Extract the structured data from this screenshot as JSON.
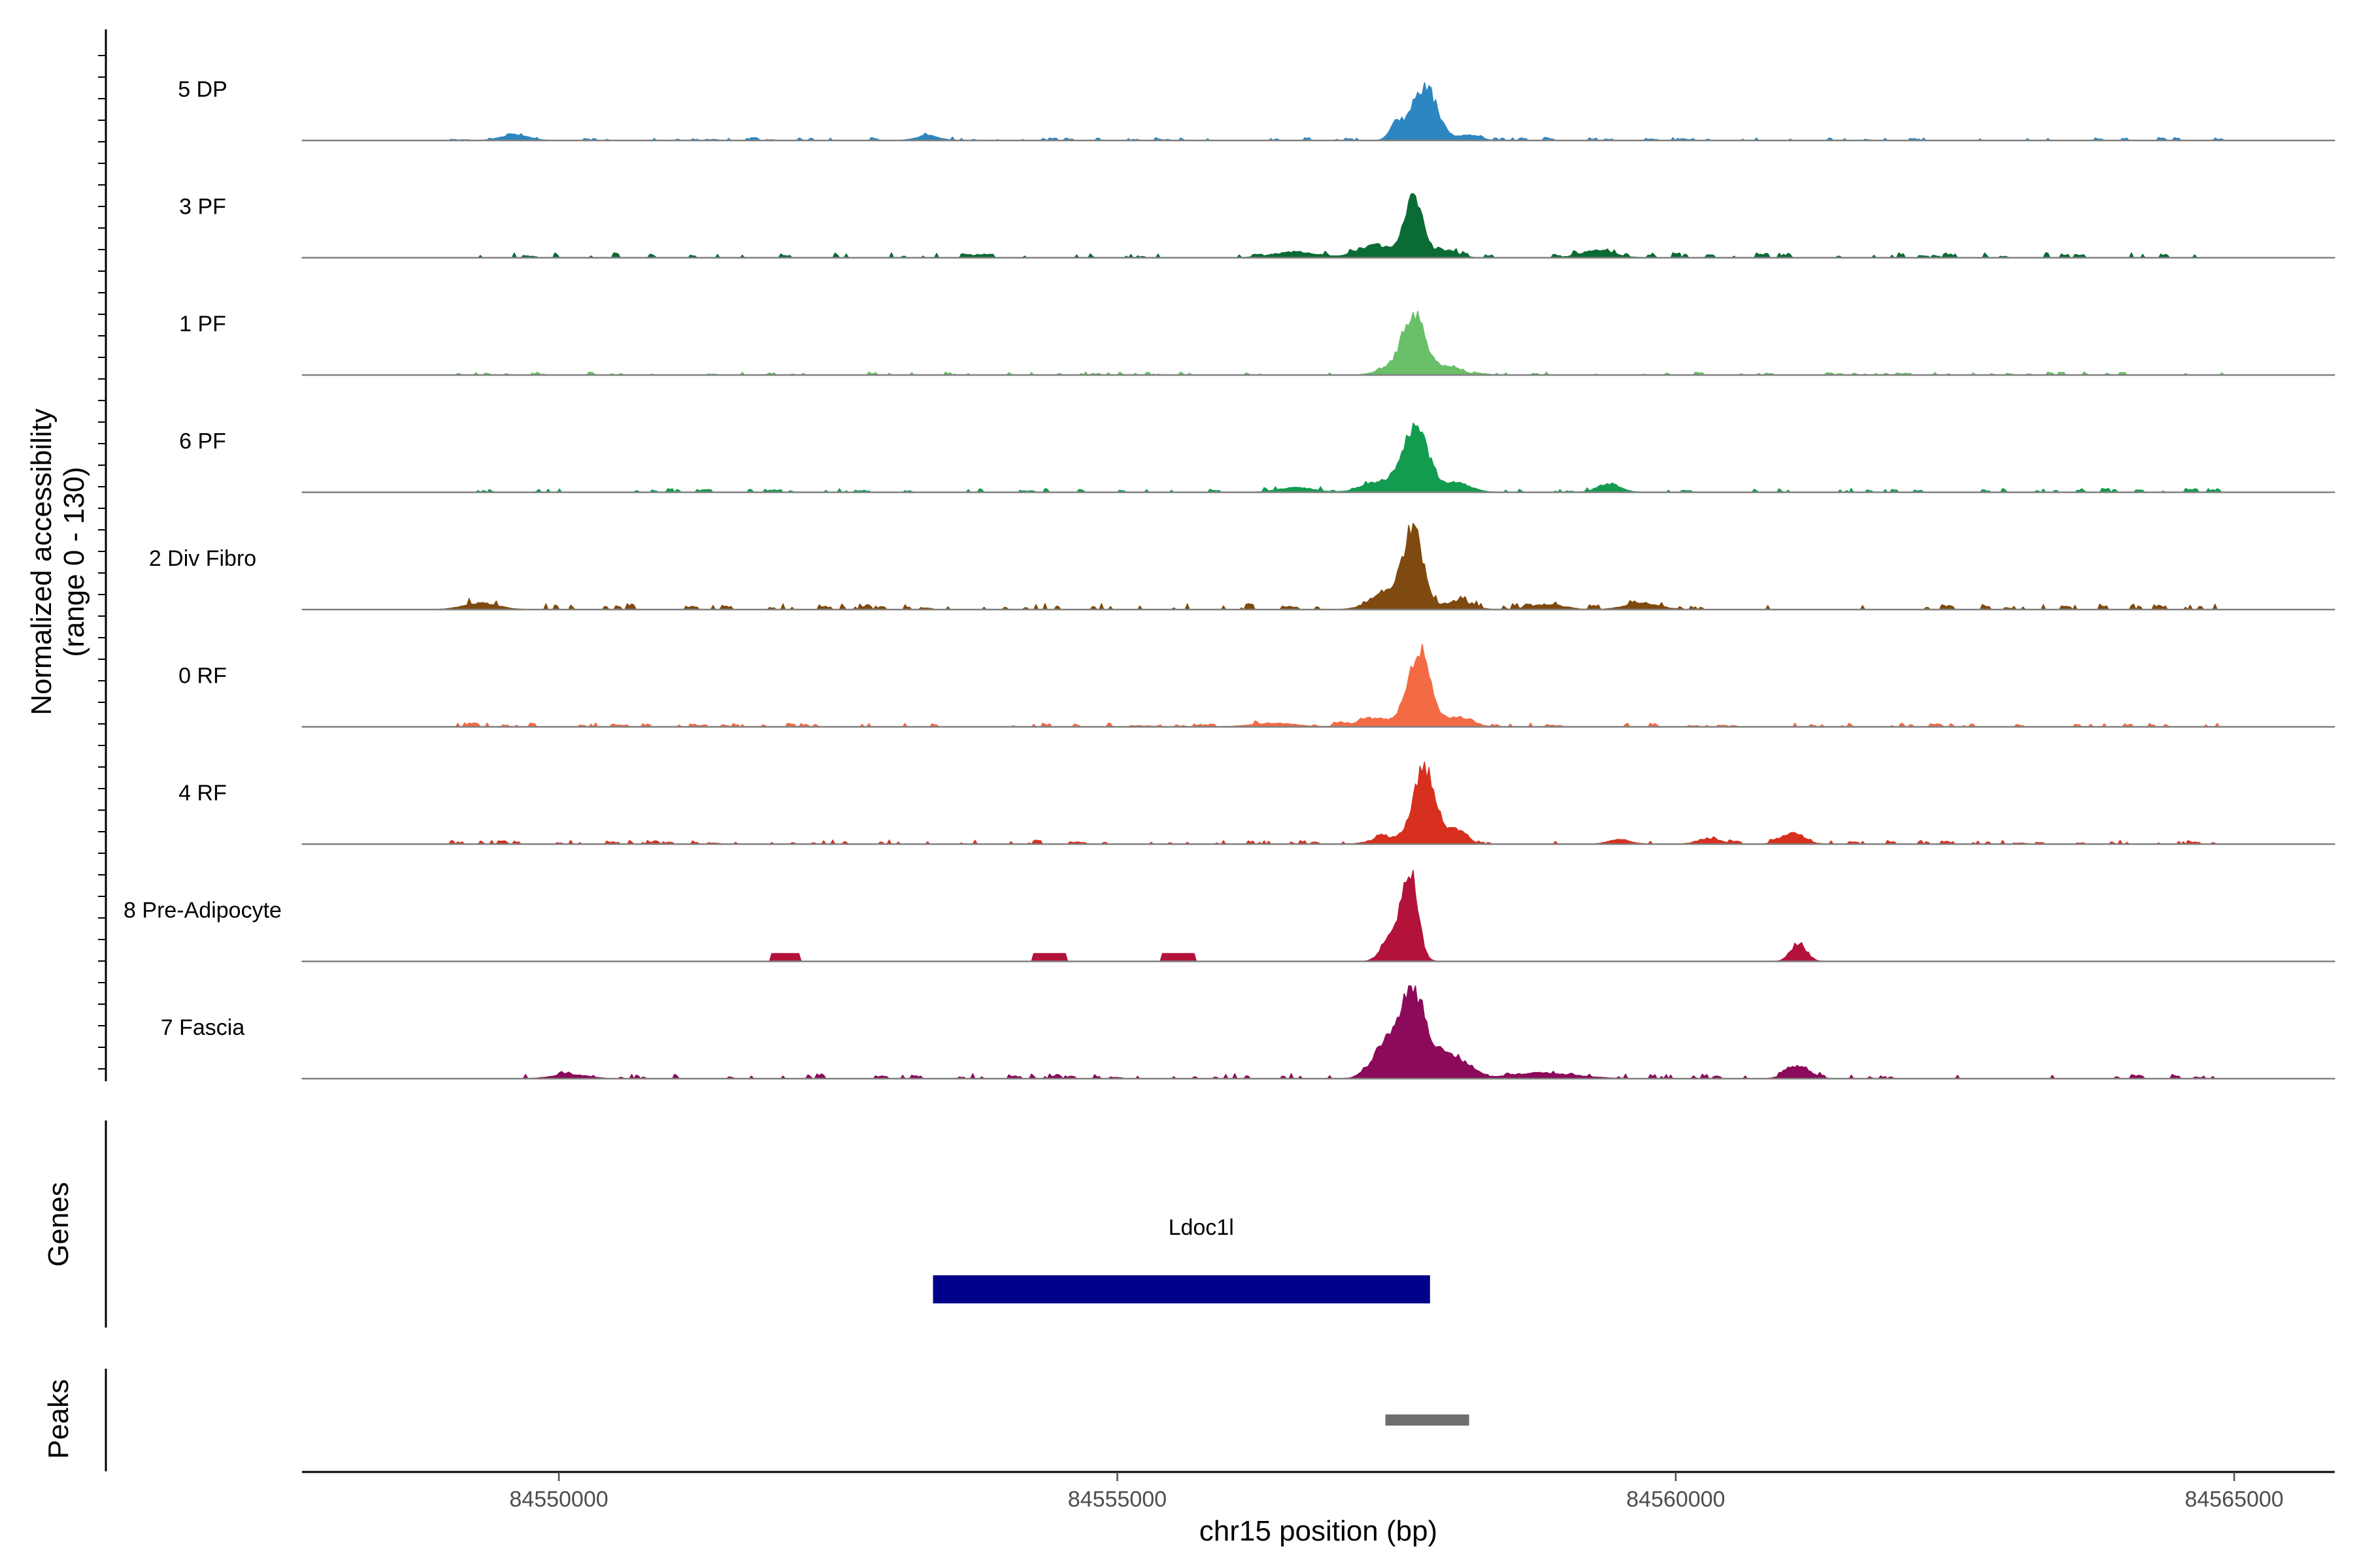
{
  "chart_data": {
    "type": "area",
    "title": "",
    "ylabel": "Normalized accessibility\n(range 0 - 130)",
    "ylabel_lines": [
      "Normalized accessibility",
      "(range 0 - 130)"
    ],
    "ylim": [
      0,
      130
    ],
    "xlabel": "chr15 position (bp)",
    "xlim": [
      84547700,
      84565900
    ],
    "xticks": [
      84550000,
      84555000,
      84560000,
      84565000
    ],
    "xtick_labels": [
      "84550000",
      "84555000",
      "84560000",
      "84565000"
    ],
    "series": [
      {
        "name": "5 DP",
        "color": "#2e86c1",
        "peaks": [
          [
            84557750,
            75,
            110
          ],
          [
            84557500,
            22,
            60
          ],
          [
            84558150,
            8,
            90
          ],
          [
            84549600,
            8,
            120
          ],
          [
            84553300,
            7,
            100
          ]
        ],
        "noise_level": 3
      },
      {
        "name": "3 PF",
        "color": "#0b6b35",
        "peaks": [
          [
            84557650,
            85,
            85
          ],
          [
            84557300,
            18,
            140
          ],
          [
            84557950,
            10,
            100
          ],
          [
            84556600,
            8,
            200
          ],
          [
            84559300,
            10,
            150
          ]
        ],
        "noise_level": 5
      },
      {
        "name": "1 PF",
        "color": "#6abf69",
        "peaks": [
          [
            84557650,
            85,
            100
          ],
          [
            84557950,
            12,
            120
          ],
          [
            84557400,
            8,
            100
          ]
        ],
        "noise_level": 3
      },
      {
        "name": "6 PF",
        "color": "#139c4f",
        "peaks": [
          [
            84557680,
            90,
            110
          ],
          [
            84557350,
            15,
            150
          ],
          [
            84558050,
            12,
            120
          ],
          [
            84559400,
            12,
            100
          ],
          [
            84556600,
            7,
            150
          ]
        ],
        "noise_level": 4
      },
      {
        "name": "2 Div Fibro",
        "color": "#7f4a0f",
        "peaks": [
          [
            84557650,
            110,
            90
          ],
          [
            84557400,
            22,
            140
          ],
          [
            84558050,
            12,
            120
          ],
          [
            84549300,
            9,
            150
          ],
          [
            84558850,
            7,
            150
          ],
          [
            84559700,
            9,
            150
          ]
        ],
        "noise_level": 6
      },
      {
        "name": "0 RF",
        "color": "#f26b45",
        "peaks": [
          [
            84557700,
            105,
            100
          ],
          [
            84557300,
            12,
            150
          ],
          [
            84558050,
            14,
            120
          ],
          [
            84556400,
            5,
            200
          ]
        ],
        "noise_level": 4
      },
      {
        "name": "4 RF",
        "color": "#d7301f",
        "peaks": [
          [
            84557750,
            105,
            100
          ],
          [
            84558050,
            20,
            80
          ],
          [
            84557400,
            10,
            120
          ],
          [
            84561050,
            15,
            100
          ],
          [
            84560300,
            8,
            100
          ],
          [
            84559500,
            6,
            100
          ]
        ],
        "noise_level": 4
      },
      {
        "name": "8 Pre-Adipocyte",
        "color": "#b3123a",
        "peaks": [
          [
            84557620,
            120,
            70
          ],
          [
            84557450,
            35,
            80
          ],
          [
            84561100,
            25,
            70
          ]
        ],
        "plateaus": [
          [
            84551900,
            84552150,
            11
          ],
          [
            84554250,
            84554550,
            11
          ],
          [
            84555400,
            84555700,
            11
          ]
        ],
        "noise_level": 0
      },
      {
        "name": "7 Fascia",
        "color": "#8b0a5a",
        "peaks": [
          [
            84557650,
            125,
            110
          ],
          [
            84557400,
            45,
            120
          ],
          [
            84558000,
            35,
            120
          ],
          [
            84561100,
            18,
            100
          ],
          [
            84558800,
            8,
            300
          ],
          [
            84550100,
            6,
            150
          ]
        ],
        "noise_level": 5
      }
    ],
    "genes_track": {
      "title": "Genes",
      "genes": [
        {
          "name": "Ldoc1l",
          "start": 84553350,
          "end": 84557800,
          "color": "#00008b"
        }
      ]
    },
    "peaks_track": {
      "title": "Peaks",
      "peaks": [
        {
          "start": 84557400,
          "end": 84558150,
          "color": "#6e6e6e"
        }
      ]
    }
  }
}
